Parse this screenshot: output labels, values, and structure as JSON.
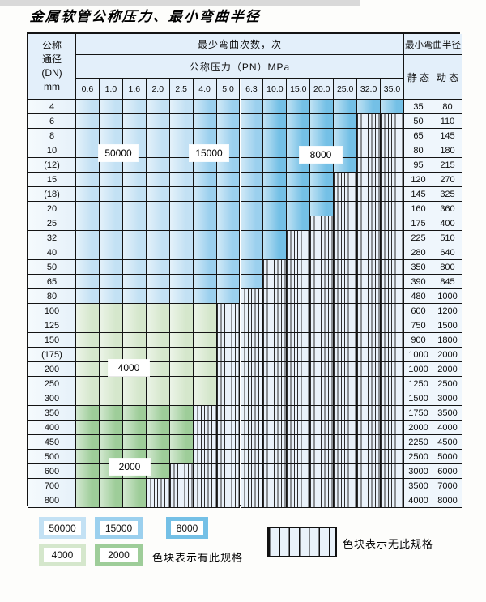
{
  "title": "金属软管公称压力、最小弯曲半径",
  "table": {
    "dn_header_lines": [
      "公称",
      "通径",
      "(DN)",
      "mm"
    ],
    "bend_cycles_header": "最少弯曲次数，次",
    "pressure_header": "公称压力（PN）MPa",
    "radius_header": "最小弯曲半径",
    "static_header": "静 态",
    "dynamic_header": "动 态",
    "pressure_columns": [
      "0.6",
      "1.0",
      "1.6",
      "2.0",
      "2.5",
      "4.0",
      "5.0",
      "6.3",
      "10.0",
      "15.0",
      "20.0",
      "25.0",
      "32.0",
      "35.0"
    ],
    "rows": [
      {
        "dn": "4",
        "static": "35",
        "dynamic": "80",
        "colored": 14,
        "scheme": "blue"
      },
      {
        "dn": "6",
        "static": "50",
        "dynamic": "110",
        "colored": 12,
        "scheme": "blue"
      },
      {
        "dn": "8",
        "static": "65",
        "dynamic": "145",
        "colored": 12,
        "scheme": "blue"
      },
      {
        "dn": "10",
        "static": "80",
        "dynamic": "180",
        "colored": 12,
        "scheme": "blue"
      },
      {
        "dn": "(12)",
        "static": "95",
        "dynamic": "215",
        "colored": 12,
        "scheme": "blue"
      },
      {
        "dn": "15",
        "static": "120",
        "dynamic": "270",
        "colored": 11,
        "scheme": "blue"
      },
      {
        "dn": "(18)",
        "static": "145",
        "dynamic": "325",
        "colored": 11,
        "scheme": "blue"
      },
      {
        "dn": "20",
        "static": "160",
        "dynamic": "360",
        "colored": 11,
        "scheme": "blue"
      },
      {
        "dn": "25",
        "static": "175",
        "dynamic": "400",
        "colored": 10,
        "scheme": "blue"
      },
      {
        "dn": "32",
        "static": "225",
        "dynamic": "510",
        "colored": 9,
        "scheme": "blue"
      },
      {
        "dn": "40",
        "static": "280",
        "dynamic": "640",
        "colored": 9,
        "scheme": "blue"
      },
      {
        "dn": "50",
        "static": "350",
        "dynamic": "800",
        "colored": 8,
        "scheme": "blue"
      },
      {
        "dn": "65",
        "static": "390",
        "dynamic": "845",
        "colored": 8,
        "scheme": "blue"
      },
      {
        "dn": "80",
        "static": "480",
        "dynamic": "1000",
        "colored": 7,
        "scheme": "blue"
      },
      {
        "dn": "100",
        "static": "600",
        "dynamic": "1200",
        "colored": 6,
        "scheme": "green_4000"
      },
      {
        "dn": "125",
        "static": "750",
        "dynamic": "1500",
        "colored": 6,
        "scheme": "green_4000"
      },
      {
        "dn": "150",
        "static": "900",
        "dynamic": "1800",
        "colored": 6,
        "scheme": "green_4000"
      },
      {
        "dn": "(175)",
        "static": "1000",
        "dynamic": "2000",
        "colored": 6,
        "scheme": "green_4000"
      },
      {
        "dn": "200",
        "static": "1000",
        "dynamic": "2000",
        "colored": 6,
        "scheme": "green_4000"
      },
      {
        "dn": "250",
        "static": "1250",
        "dynamic": "2500",
        "colored": 6,
        "scheme": "green_4000"
      },
      {
        "dn": "300",
        "static": "1500",
        "dynamic": "3000",
        "colored": 6,
        "scheme": "green_4000"
      },
      {
        "dn": "350",
        "static": "1750",
        "dynamic": "3500",
        "colored": 5,
        "scheme": "green_2000"
      },
      {
        "dn": "400",
        "static": "2000",
        "dynamic": "4000",
        "colored": 5,
        "scheme": "green_2000"
      },
      {
        "dn": "450",
        "static": "2250",
        "dynamic": "4500",
        "colored": 5,
        "scheme": "green_2000"
      },
      {
        "dn": "500",
        "static": "2500",
        "dynamic": "5000",
        "colored": 5,
        "scheme": "green_2000"
      },
      {
        "dn": "600",
        "static": "3000",
        "dynamic": "6000",
        "colored": 4,
        "scheme": "green_2000"
      },
      {
        "dn": "700",
        "static": "3500",
        "dynamic": "7000",
        "colored": 3,
        "scheme": "green_2000"
      },
      {
        "dn": "800",
        "static": "4000",
        "dynamic": "8000",
        "colored": 3,
        "scheme": "green_2000"
      }
    ]
  },
  "overlay_labels": [
    {
      "text": "50000"
    },
    {
      "text": "15000"
    },
    {
      "text": "8000"
    },
    {
      "text": "4000"
    },
    {
      "text": "2000"
    }
  ],
  "legend": {
    "has_spec_label": "色块表示有此规格",
    "no_spec_label": "色块表示无此规格",
    "swatches": [
      {
        "label": "50000",
        "color_key": "blue_50000"
      },
      {
        "label": "15000",
        "color_key": "blue_15000"
      },
      {
        "label": "8000",
        "color_key": "blue_8000"
      },
      {
        "label": "4000",
        "color_key": "green_4000"
      },
      {
        "label": "2000",
        "color_key": "green_2000"
      }
    ]
  },
  "colors": {
    "blue_50000": "#c3e1f4",
    "blue_15000": "#9bd0ee",
    "blue_8000": "#74c0e6",
    "green_4000": "#d5e7cc",
    "green_2000": "#9ecd99",
    "hatch_bg": "#eaf2fa",
    "header_bg": "#e3effa",
    "dn_bg": "#e6f1fa"
  }
}
